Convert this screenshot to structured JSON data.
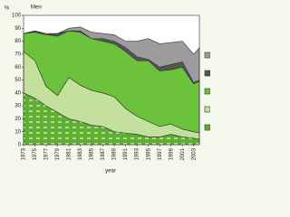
{
  "chart_data": {
    "type": "stacked_area",
    "title": "Men",
    "y_label": "%",
    "x_label": "year",
    "x": [
      1973,
      1975,
      1977,
      1979,
      1981,
      1983,
      1985,
      1987,
      1989,
      1991,
      1993,
      1995,
      1997,
      1999,
      2001,
      2003,
      2004
    ],
    "series": [
      {
        "color": "#5fb030",
        "values": [
          40,
          36,
          30,
          25,
          20,
          18,
          15,
          14,
          10,
          9,
          8,
          6,
          6,
          8,
          6,
          5,
          4
        ]
      },
      {
        "color": "#c3e19c",
        "values": [
          32,
          29,
          15,
          13,
          32,
          28,
          27,
          26,
          27,
          19,
          14,
          12,
          8,
          8,
          6,
          5,
          5
        ]
      },
      {
        "color": "#6cc23a",
        "values": [
          14,
          22,
          40,
          46,
          36,
          41,
          40,
          40,
          41,
          44,
          43,
          47,
          43,
          42,
          48,
          37,
          40
        ]
      },
      {
        "color": "#555555",
        "values": [
          0,
          1,
          0,
          2,
          0,
          1,
          0,
          2,
          2,
          3,
          3,
          1,
          3,
          4,
          4,
          1,
          1
        ]
      },
      {
        "color": "#9c9c9c",
        "values": [
          0,
          0,
          1,
          0,
          2,
          3,
          5,
          4,
          5,
          5,
          12,
          16,
          18,
          17,
          16,
          22,
          25
        ]
      }
    ],
    "xlim": [
      1973,
      2004
    ],
    "xticks": [
      1973,
      1975,
      1977,
      1979,
      1981,
      1983,
      1985,
      1987,
      1989,
      1991,
      1993,
      1995,
      1997,
      1999,
      2001,
      2003
    ],
    "ylim": [
      0,
      100
    ],
    "yticks": [
      0,
      10,
      20,
      30,
      40,
      50,
      60,
      70,
      80,
      90,
      100
    ]
  }
}
